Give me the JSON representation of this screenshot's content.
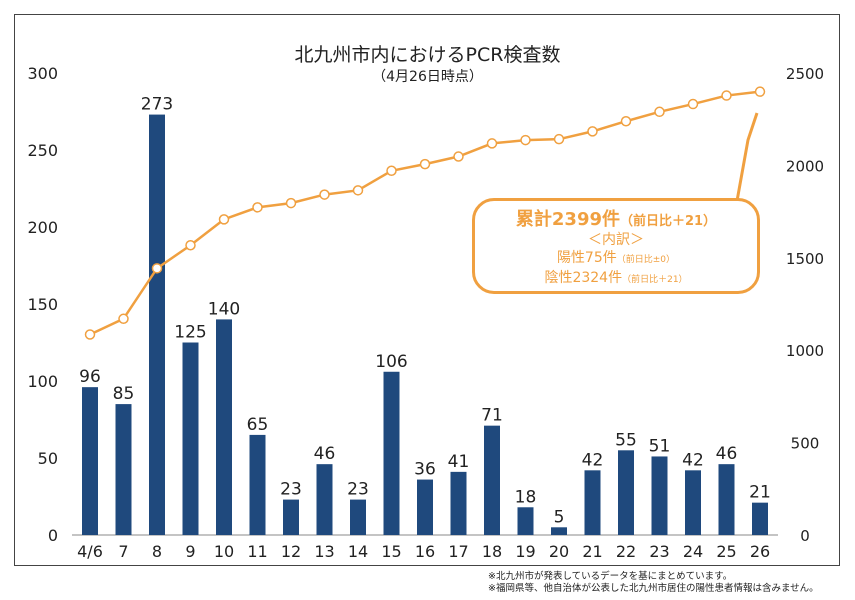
{
  "title": "北九州市内におけるPCR検査数",
  "subtitle": "（4月26日時点）",
  "colors": {
    "bar": "#1f497d",
    "line": "#f0a040"
  },
  "chart_data": {
    "type": "bar+line",
    "categories": [
      "4/6",
      "7",
      "8",
      "9",
      "10",
      "11",
      "12",
      "13",
      "14",
      "15",
      "16",
      "17",
      "18",
      "19",
      "20",
      "21",
      "22",
      "23",
      "24",
      "25",
      "26"
    ],
    "series": [
      {
        "axis": "left",
        "type": "bar",
        "values": [
          96,
          85,
          273,
          125,
          140,
          65,
          23,
          46,
          23,
          106,
          36,
          41,
          71,
          18,
          5,
          42,
          55,
          51,
          42,
          46,
          21
        ]
      },
      {
        "axis": "right",
        "type": "line",
        "values": [
          1085,
          1170,
          1443,
          1568,
          1708,
          1773,
          1796,
          1842,
          1865,
          1971,
          2007,
          2048,
          2119,
          2137,
          2142,
          2184,
          2239,
          2290,
          2332,
          2378,
          2399
        ]
      }
    ],
    "left_ylim": [
      0,
      300
    ],
    "left_ticks": [
      0,
      50,
      100,
      150,
      200,
      250,
      300
    ],
    "right_ylim": [
      0,
      2500
    ],
    "right_ticks": [
      0,
      500,
      1000,
      1500,
      2000,
      2500
    ],
    "grid": false,
    "legend": "none"
  },
  "callout": {
    "total": "累計2399件",
    "total_diff": "（前日比＋21）",
    "breakdown": "＜内訳＞",
    "positive": "陽性75件",
    "positive_diff": "（前日比±0）",
    "negative": "陰性2324件",
    "negative_diff": "（前日比＋21）"
  },
  "notes": [
    "※北九州市が発表しているデータを基にまとめています。",
    "※福岡県等、他自治体が公表した北九州市居住の陽性患者情報は含みません。"
  ]
}
